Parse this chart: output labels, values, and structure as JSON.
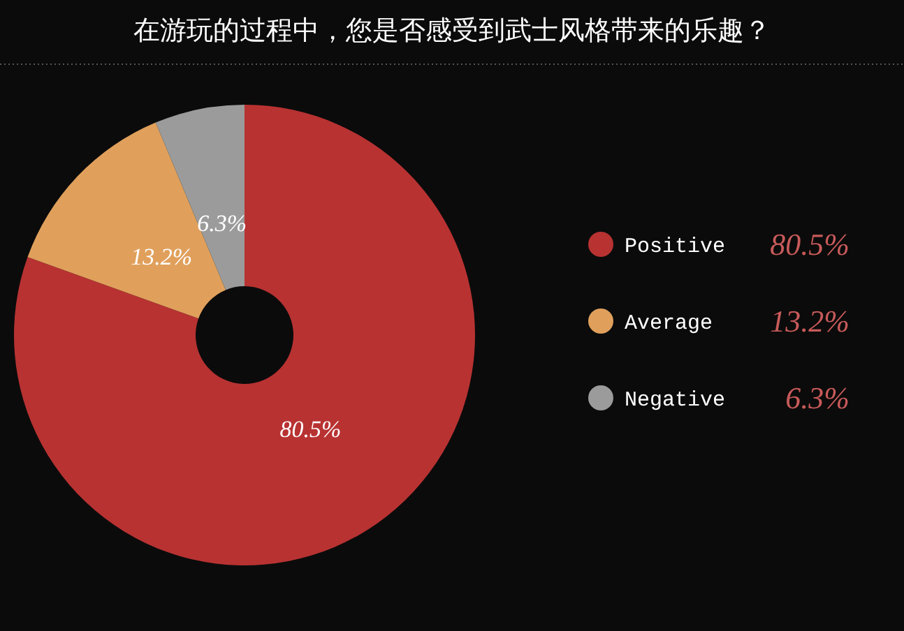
{
  "chart_data": {
    "type": "donut",
    "title": "在游玩的过程中，您是否感受到武士风格带来的乐趣？",
    "categories": [
      "Positive",
      "Average",
      "Negative"
    ],
    "values": [
      80.5,
      13.2,
      6.3
    ],
    "colors": [
      "#b83232",
      "#e0a05c",
      "#9b9b9b"
    ],
    "value_labels": [
      "80.5%",
      "13.2%",
      "6.3%"
    ],
    "legend": "right"
  }
}
